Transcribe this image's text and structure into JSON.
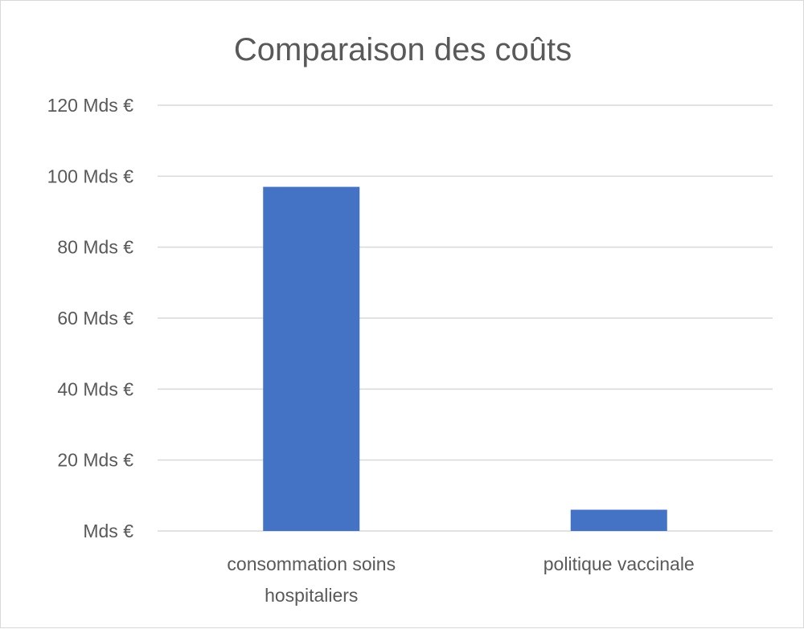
{
  "chart_data": {
    "type": "bar",
    "title": "Comparaison des coûts",
    "categories": [
      "consommation soins hospitaliers",
      "politique vaccinale"
    ],
    "category_lines": [
      [
        "consommation soins",
        "hospitaliers"
      ],
      [
        "politique vaccinale"
      ]
    ],
    "series": [
      {
        "values": [
          97,
          6
        ],
        "color": "#4472c4"
      }
    ],
    "ylim": [
      0,
      120
    ],
    "ytick_step": 20,
    "ytick_labels": [
      "Mds €",
      "20 Mds €",
      "40 Mds €",
      "60 Mds €",
      "80 Mds €",
      "100 Mds €",
      "120 Mds €"
    ],
    "grid": true,
    "legend": "none"
  }
}
